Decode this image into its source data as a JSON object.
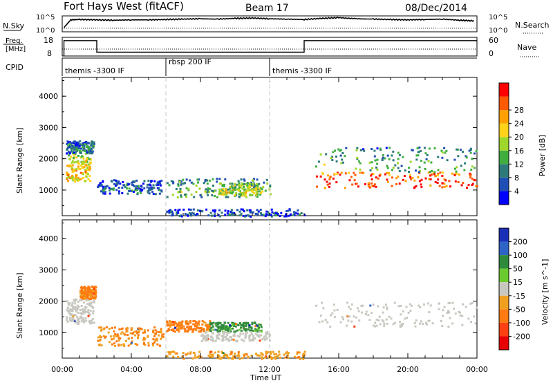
{
  "header": {
    "station": "Fort Hays West (fitACF)",
    "beam": "Beam 17",
    "date": "08/Dec/2014"
  },
  "noise_panel": {
    "left_label": "N.Sky",
    "right_label": "N.Search",
    "left_ticks": [
      "10^5",
      "10^0"
    ],
    "right_ticks": [
      "10^5",
      "10^0"
    ]
  },
  "freq_panel": {
    "left_label_line1": "Freq.",
    "left_label_line2": "[MHz]",
    "right_label": "Nave",
    "left_ticks": [
      "18",
      "8"
    ],
    "right_ticks": [
      "60",
      "0"
    ]
  },
  "cpid": {
    "label": "CPID",
    "segments": [
      {
        "name": "themis -3300 IF",
        "start_h": 0,
        "end_h": 6
      },
      {
        "name": "rbsp 200 IF",
        "start_h": 6,
        "end_h": 12
      },
      {
        "name": "themis -3300 IF",
        "start_h": 12,
        "end_h": 24
      }
    ]
  },
  "axes": {
    "ylabel": "Slant Range [km]",
    "xlabel": "Time UT",
    "x_ticks": [
      "00:00",
      "04:00",
      "08:00",
      "12:00",
      "16:00",
      "20:00",
      "00:00"
    ],
    "y_ticks": [
      "1000",
      "2000",
      "3000",
      "4000"
    ]
  },
  "power_colorbar": {
    "label": "Power [dB]",
    "ticks": [
      "4",
      "8",
      "12",
      "16",
      "20",
      "24",
      "28"
    ],
    "colors": [
      "#0000ff",
      "#1f4fb4",
      "#2e7a7a",
      "#3fae3f",
      "#9fd62a",
      "#ffd21a",
      "#ffa000",
      "#ff5a00",
      "#ff0000"
    ]
  },
  "velocity_colorbar": {
    "label": "Velocity [m s^-1]",
    "ticks": [
      "200",
      "100",
      "50",
      "15",
      "-15",
      "-50",
      "-100",
      "-200"
    ],
    "colors": [
      "#1a2fb8",
      "#2e63c8",
      "#2e8a3a",
      "#6acb2e",
      "#c8c8c0",
      "#f0a020",
      "#ff7a10",
      "#ff4010",
      "#e80000"
    ]
  },
  "chart_data": [
    {
      "type": "line",
      "title": "N.Sky / N.Search",
      "x_range_h": [
        0,
        24
      ],
      "series": [
        {
          "name": "N.Sky",
          "x": [
            0.1,
            0.5,
            1,
            2,
            3,
            4,
            5,
            6,
            7,
            8,
            9,
            10,
            11,
            12,
            13,
            14,
            15,
            16,
            17,
            18,
            19,
            20,
            21,
            22,
            23,
            23.9
          ],
          "y": [
            1.2,
            3.3,
            3.4,
            3.3,
            3.2,
            3.3,
            3.3,
            3.4,
            3.5,
            3.6,
            3.5,
            3.7,
            3.8,
            3.6,
            3.5,
            3.4,
            3.7,
            3.9,
            3.6,
            3.5,
            3.4,
            3.3,
            3.4,
            3.5,
            3.2,
            3.0
          ]
        },
        {
          "name": "N.Search",
          "x": [
            0,
            24
          ],
          "y": [
            1.0,
            1.0
          ]
        }
      ]
    },
    {
      "type": "line",
      "title": "Freq / Nave",
      "x_range_h": [
        0,
        24
      ],
      "series": [
        {
          "name": "Freq",
          "x": [
            0.1,
            0.1,
            2,
            2,
            14,
            14,
            24
          ],
          "y": [
            8,
            16.9,
            16.9,
            10.2,
            10.2,
            16.9,
            16.9
          ]
        },
        {
          "name": "Nave",
          "x": [
            0,
            24
          ],
          "y": [
            12,
            12
          ]
        }
      ]
    },
    {
      "type": "heatmap",
      "name": "power",
      "x_range_h": [
        0,
        24
      ],
      "y_range_km": [
        180,
        4600
      ],
      "regions": [
        {
          "x": [
            0.2,
            1.6
          ],
          "y": [
            1300,
            2200
          ],
          "level": 0.55
        },
        {
          "x": [
            0.2,
            1.8
          ],
          "y": [
            2200,
            2600
          ],
          "level": 0.2
        },
        {
          "x": [
            2.0,
            5.8
          ],
          "y": [
            900,
            1350
          ],
          "level": 0.15
        },
        {
          "x": [
            6.0,
            12.0
          ],
          "y": [
            800,
            1400
          ],
          "level": 0.3
        },
        {
          "x": [
            9.0,
            11.5
          ],
          "y": [
            850,
            1250
          ],
          "level": 0.45
        },
        {
          "x": [
            14.6,
            24.0
          ],
          "y": [
            1100,
            1600
          ],
          "level": 0.8
        },
        {
          "x": [
            14.6,
            24.0
          ],
          "y": [
            1600,
            2400
          ],
          "level": 0.3
        },
        {
          "x": [
            6.0,
            14.0
          ],
          "y": [
            180,
            420
          ],
          "level": 0.1
        }
      ]
    },
    {
      "type": "heatmap",
      "name": "velocity",
      "x_range_h": [
        0,
        24
      ],
      "y_range_km": [
        180,
        4600
      ],
      "regions": [
        {
          "x": [
            0.2,
            1.8
          ],
          "y": [
            1300,
            2100
          ],
          "value": 0
        },
        {
          "x": [
            1.0,
            1.9
          ],
          "y": [
            2100,
            2500
          ],
          "value": -60
        },
        {
          "x": [
            2.0,
            5.8
          ],
          "y": [
            600,
            1200
          ],
          "value": -50
        },
        {
          "x": [
            6.0,
            8.5
          ],
          "y": [
            1050,
            1400
          ],
          "value": -60
        },
        {
          "x": [
            8.5,
            11.5
          ],
          "y": [
            1050,
            1350
          ],
          "value": 40
        },
        {
          "x": [
            8.0,
            12.0
          ],
          "y": [
            750,
            1050
          ],
          "value": 0
        },
        {
          "x": [
            14.6,
            24.0
          ],
          "y": [
            1200,
            2000
          ],
          "value": 0
        },
        {
          "x": [
            6.0,
            14.0
          ],
          "y": [
            180,
            420
          ],
          "value": -40
        }
      ]
    }
  ]
}
